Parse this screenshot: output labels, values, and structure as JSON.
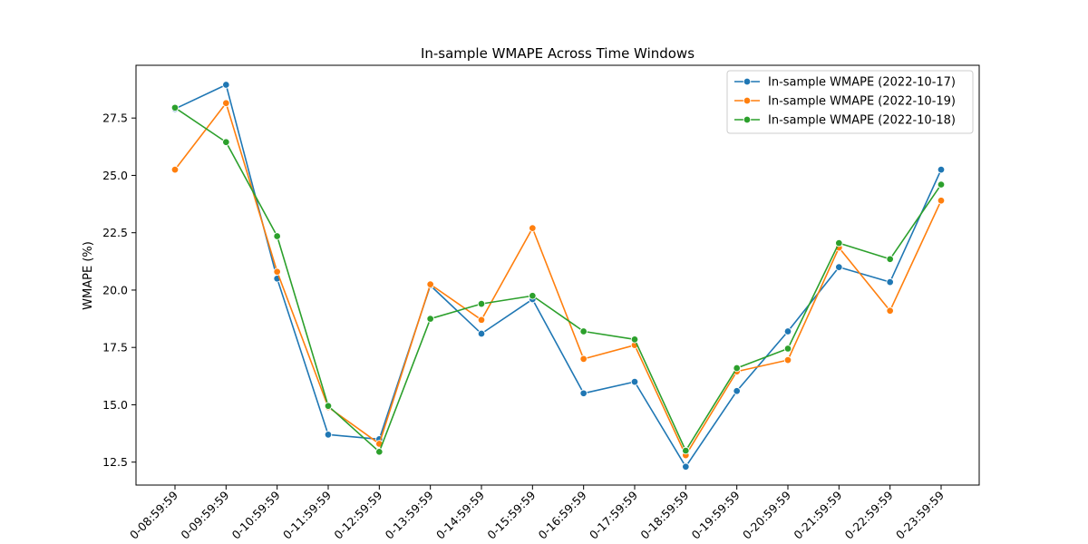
{
  "chart_data": {
    "type": "line",
    "title": "In-sample WMAPE Across Time Windows",
    "xlabel": "",
    "ylabel": "WMAPE (%)",
    "categories": [
      "0-08:59:59",
      "0-09:59:59",
      "0-10:59:59",
      "0-11:59:59",
      "0-12:59:59",
      "0-13:59:59",
      "0-14:59:59",
      "0-15:59:59",
      "0-16:59:59",
      "0-17:59:59",
      "0-18:59:59",
      "0-19:59:59",
      "0-20:59:59",
      "0-21:59:59",
      "0-22:59:59",
      "0-23:59:59"
    ],
    "y_ticks": [
      "12.5",
      "15.0",
      "17.5",
      "20.0",
      "22.5",
      "25.0",
      "27.5"
    ],
    "ylim": [
      11.5,
      29.8
    ],
    "grid": false,
    "legend_position": "top-right",
    "series": [
      {
        "name": "In-sample WMAPE (2022-10-17)",
        "color": "#1f77b4",
        "values": [
          27.9,
          28.95,
          20.5,
          13.7,
          13.5,
          20.2,
          18.1,
          19.6,
          15.5,
          16.0,
          12.3,
          15.6,
          18.2,
          21.0,
          20.35,
          25.25
        ]
      },
      {
        "name": "In-sample WMAPE (2022-10-19)",
        "color": "#ff7f0e",
        "values": [
          25.25,
          28.15,
          20.8,
          14.9,
          13.3,
          20.25,
          18.7,
          22.7,
          17.0,
          17.6,
          12.8,
          16.45,
          16.95,
          21.85,
          19.1,
          23.9
        ]
      },
      {
        "name": "In-sample WMAPE (2022-10-18)",
        "color": "#2ca02c",
        "values": [
          27.95,
          26.45,
          22.35,
          14.95,
          12.95,
          18.75,
          19.4,
          19.75,
          18.2,
          17.85,
          13.0,
          16.6,
          17.45,
          22.05,
          21.35,
          24.6
        ]
      }
    ]
  }
}
